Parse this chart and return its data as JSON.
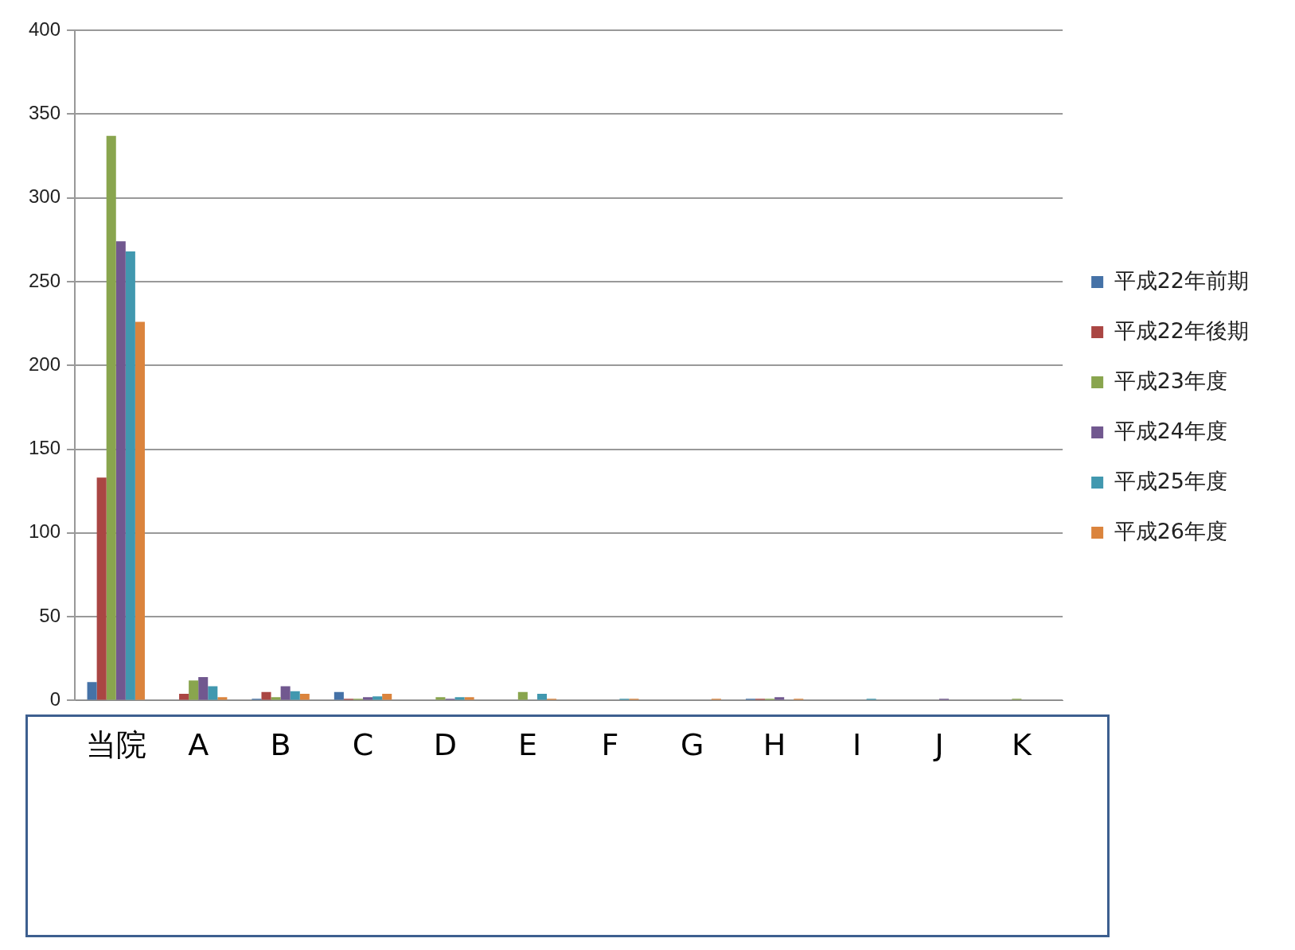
{
  "chart_data": {
    "type": "bar",
    "categories": [
      "当院",
      "A",
      "B",
      "C",
      "D",
      "E",
      "F",
      "G",
      "H",
      "I",
      "J",
      "K"
    ],
    "series": [
      {
        "name": "平成22年前期",
        "color": "#4572a7",
        "values": [
          11,
          0,
          1,
          5,
          0,
          0,
          0,
          0,
          1,
          0,
          0,
          0
        ]
      },
      {
        "name": "平成22年後期",
        "color": "#aa4643",
        "values": [
          133,
          4,
          5,
          1,
          0,
          0,
          0,
          0,
          1,
          0,
          0,
          0
        ]
      },
      {
        "name": "平成23年度",
        "color": "#89a54e",
        "values": [
          337,
          12,
          2,
          1,
          2,
          5,
          0,
          0,
          1,
          0,
          0,
          1
        ]
      },
      {
        "name": "平成24年度",
        "color": "#71588f",
        "values": [
          274,
          14,
          8.5,
          2,
          1,
          0,
          0,
          0,
          2,
          0,
          1,
          0
        ]
      },
      {
        "name": "平成25年度",
        "color": "#4198af",
        "values": [
          268,
          8.5,
          5.5,
          2.5,
          2,
          4,
          1,
          0,
          0,
          1,
          0,
          0
        ]
      },
      {
        "name": "平成26年度",
        "color": "#db843d",
        "values": [
          226,
          2,
          4,
          4,
          2,
          1,
          1,
          1,
          1,
          0,
          0,
          0
        ]
      }
    ],
    "ylim": [
      0,
      400
    ],
    "yticks": [
      0,
      50,
      100,
      150,
      200,
      250,
      300,
      350,
      400
    ],
    "grid": "y",
    "legend": "right"
  }
}
